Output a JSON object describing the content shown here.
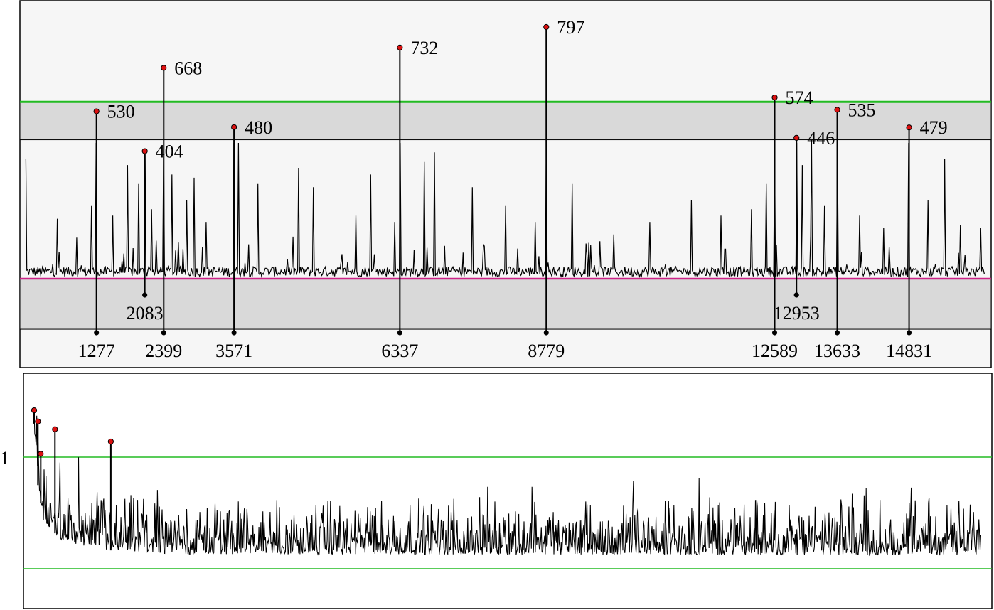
{
  "colors": {
    "signal": "#000000",
    "peak_marker": "#dd1111",
    "threshold": "#22bb22",
    "baseline": "#cc2288",
    "band": "#d9d9d9",
    "panel_bg": "#f6f6f6"
  },
  "chart_data": [
    {
      "type": "line",
      "title": "",
      "xlabel": "",
      "ylabel": "",
      "xlim": [
        0,
        16200
      ],
      "ylim": [
        -160,
        890
      ],
      "grid": false,
      "baseline_y": 0,
      "threshold_y": 560,
      "bands": [
        [
          440,
          560
        ],
        [
          -160,
          0
        ]
      ],
      "peaks": [
        {
          "x": 1277,
          "y": 530,
          "x_label": "1277",
          "y_label": "530",
          "tick_row": 2
        },
        {
          "x": 2083,
          "y": 404,
          "x_label": "2083",
          "y_label": "404",
          "tick_row": 1
        },
        {
          "x": 2399,
          "y": 668,
          "x_label": "2399",
          "y_label": "668",
          "tick_row": 2
        },
        {
          "x": 3571,
          "y": 480,
          "x_label": "3571",
          "y_label": "480",
          "tick_row": 2
        },
        {
          "x": 6337,
          "y": 732,
          "x_label": "6337",
          "y_label": "732",
          "tick_row": 2
        },
        {
          "x": 8779,
          "y": 797,
          "x_label": "8779",
          "y_label": "797",
          "tick_row": 2
        },
        {
          "x": 12589,
          "y": 574,
          "x_label": "12589",
          "y_label": "574",
          "tick_row": 2
        },
        {
          "x": 12953,
          "y": 446,
          "x_label": "12953",
          "y_label": "446",
          "tick_row": 1
        },
        {
          "x": 13633,
          "y": 535,
          "x_label": "13633",
          "y_label": "535",
          "tick_row": 2
        },
        {
          "x": 14831,
          "y": 479,
          "x_label": "14831",
          "y_label": "479",
          "tick_row": 2
        }
      ],
      "noise_peaks": [
        {
          "x": 80,
          "y": 380
        },
        {
          "x": 620,
          "y": 190
        },
        {
          "x": 950,
          "y": 130
        },
        {
          "x": 1190,
          "y": 230
        },
        {
          "x": 1550,
          "y": 200
        },
        {
          "x": 1800,
          "y": 360
        },
        {
          "x": 1980,
          "y": 300
        },
        {
          "x": 2200,
          "y": 220
        },
        {
          "x": 2530,
          "y": 330
        },
        {
          "x": 2780,
          "y": 250
        },
        {
          "x": 2900,
          "y": 320
        },
        {
          "x": 3100,
          "y": 180
        },
        {
          "x": 3640,
          "y": 430
        },
        {
          "x": 3970,
          "y": 300
        },
        {
          "x": 4650,
          "y": 350
        },
        {
          "x": 4900,
          "y": 290
        },
        {
          "x": 5600,
          "y": 200
        },
        {
          "x": 5850,
          "y": 330
        },
        {
          "x": 6250,
          "y": 180
        },
        {
          "x": 6750,
          "y": 370
        },
        {
          "x": 6920,
          "y": 400
        },
        {
          "x": 7550,
          "y": 290
        },
        {
          "x": 8100,
          "y": 230
        },
        {
          "x": 8600,
          "y": 180
        },
        {
          "x": 9210,
          "y": 300
        },
        {
          "x": 9900,
          "y": 140
        },
        {
          "x": 10500,
          "y": 180
        },
        {
          "x": 11200,
          "y": 250
        },
        {
          "x": 11700,
          "y": 200
        },
        {
          "x": 12200,
          "y": 220
        },
        {
          "x": 12450,
          "y": 300
        },
        {
          "x": 13050,
          "y": 360
        },
        {
          "x": 13210,
          "y": 440
        },
        {
          "x": 13420,
          "y": 230
        },
        {
          "x": 14000,
          "y": 200
        },
        {
          "x": 14400,
          "y": 160
        },
        {
          "x": 15150,
          "y": 250
        },
        {
          "x": 15420,
          "y": 380
        },
        {
          "x": 15680,
          "y": 170
        },
        {
          "x": 16020,
          "y": 160
        }
      ]
    },
    {
      "type": "line",
      "title": "",
      "xlabel": "",
      "ylabel": "",
      "y_tick_label": "1",
      "y_tick_value": 1,
      "threshold_lines": [
        1,
        0
      ],
      "xlim": [
        0,
        1
      ],
      "ylim": [
        -0.35,
        1.7
      ],
      "grid": false,
      "decay_profile": [
        {
          "x": 0.0,
          "y": 1.3
        },
        {
          "x": 0.004,
          "y": 0.75
        },
        {
          "x": 0.01,
          "y": 0.42
        },
        {
          "x": 0.03,
          "y": 0.25
        },
        {
          "x": 0.07,
          "y": 0.17
        },
        {
          "x": 0.15,
          "y": 0.13
        },
        {
          "x": 1.0,
          "y": 0.12
        }
      ],
      "peaks": [
        {
          "x": 0.0,
          "y": 1.42
        },
        {
          "x": 0.004,
          "y": 1.32
        },
        {
          "x": 0.007,
          "y": 1.03
        },
        {
          "x": 0.022,
          "y": 1.25
        },
        {
          "x": 0.081,
          "y": 1.14
        }
      ]
    }
  ]
}
